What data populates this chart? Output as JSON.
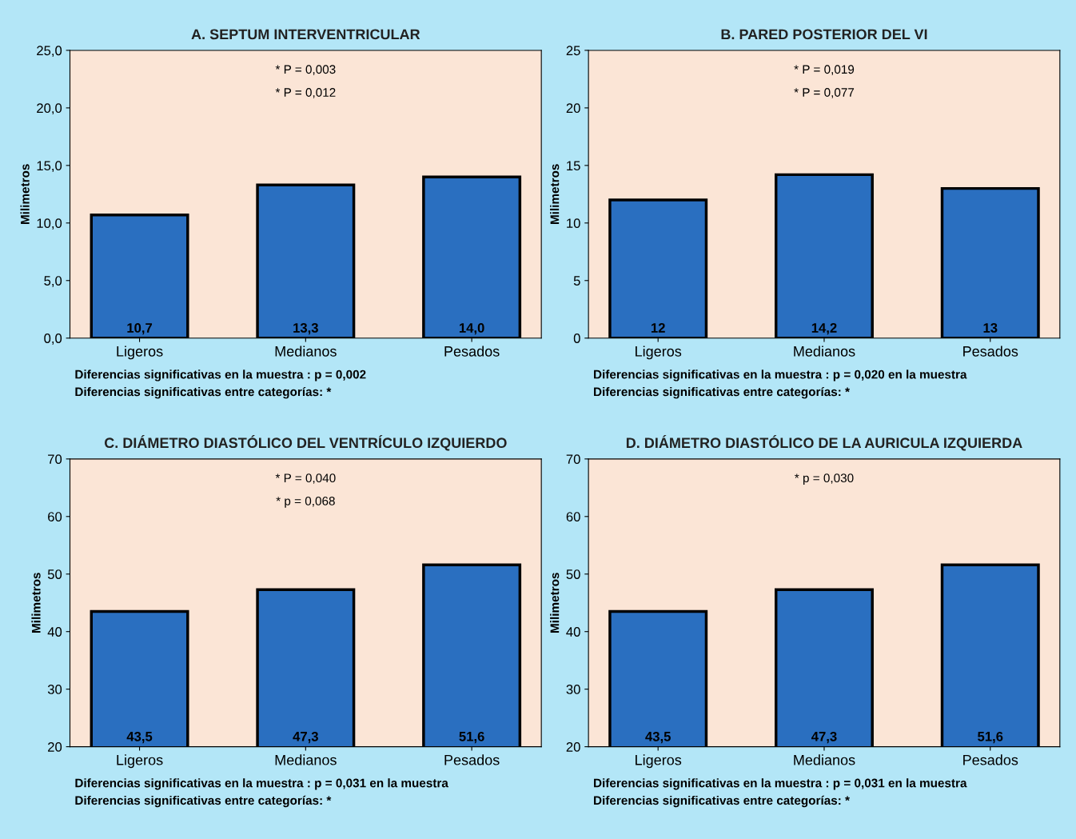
{
  "chart_data": [
    {
      "type": "bar",
      "title": "A. SEPTUM INTERVENTRICULAR",
      "ylabel": "Milimetros",
      "categories": [
        "Ligeros",
        "Medianos",
        "Pesados"
      ],
      "values": [
        10.7,
        13.3,
        14.0
      ],
      "value_labels": [
        "10,7",
        "13,3",
        "14,0"
      ],
      "color": "#2a6fc0",
      "ylim": [
        0,
        25
      ],
      "yticks": [
        {
          "value": 0,
          "label": "0,0"
        },
        {
          "value": 5,
          "label": "5,0"
        },
        {
          "value": 10,
          "label": "10,0"
        },
        {
          "value": 15,
          "label": "15,0"
        },
        {
          "value": 20,
          "label": "20,0"
        },
        {
          "value": 25,
          "label": "25,0"
        }
      ],
      "grid": false,
      "annotations": [
        "* P = 0,003",
        "* P = 0,012",
        "Diferencias significativas en la muestra : p = 0,002",
        "Diferencias significativas entre categorías: *"
      ]
    },
    {
      "type": "bar",
      "title": "B. PARED POSTERIOR DEL VI",
      "ylabel": "Milimetros",
      "categories": [
        "Ligeros",
        "Medianos",
        "Pesados"
      ],
      "values": [
        12,
        14.2,
        13
      ],
      "value_labels": [
        "12",
        "14,2",
        "13"
      ],
      "color": "#2a6fc0",
      "ylim": [
        0,
        25
      ],
      "yticks": [
        0,
        5,
        10,
        15,
        20,
        25
      ],
      "grid": false,
      "annotations": [
        "* P = 0,019",
        "* P = 0,077",
        "Diferencias significativas en la muestra : p = 0,020 en la muestra",
        "Diferencias significativas entre categorías: *"
      ]
    },
    {
      "type": "bar",
      "title": "C. DIÁMETRO DIASTÓLICO DEL VENTRÍCULO IZQUIERDO",
      "ylabel": "Milimetros",
      "categories": [
        "Ligeros",
        "Medianos",
        "Pesados"
      ],
      "values": [
        43.5,
        47.3,
        51.6
      ],
      "value_labels": [
        "43,5",
        "47,3",
        "51,6"
      ],
      "color": "#2a6fc0",
      "ylim": [
        20,
        70
      ],
      "yticks": [
        20,
        30,
        40,
        50,
        60,
        70
      ],
      "grid": false,
      "annotations": [
        "* P = 0,040",
        "* p = 0,068",
        "Diferencias significativas en la muestra : p = 0,031 en la muestra",
        "Diferencias significativas entre categorías: *"
      ]
    },
    {
      "type": "bar",
      "title": "D. DIÁMETRO DIASTÓLICO DE LA AURICULA IZQUIERDA",
      "ylabel": "Milimetros",
      "categories": [
        "Ligeros",
        "Medianos",
        "Pesados"
      ],
      "values": [
        43.5,
        47.3,
        51.6
      ],
      "value_labels": [
        "43,5",
        "47,3",
        "51,6"
      ],
      "color": "#2a6fc0",
      "ylim": [
        20,
        70
      ],
      "yticks": [
        20,
        30,
        40,
        50,
        60,
        70
      ],
      "grid": false,
      "annotations": [
        "* p = 0,030",
        "Diferencias significativas en la muestra : p = 0,031 en la muestra",
        "Diferencias significativas entre categorías: *"
      ]
    }
  ]
}
